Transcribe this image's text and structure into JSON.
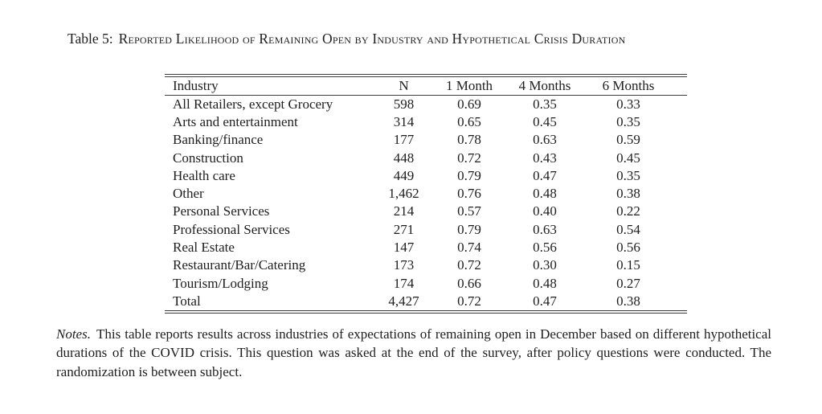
{
  "title": {
    "prefix": "Table 5:",
    "smallcaps": "Reported Likelihood of Remaining Open by Industry and Hypothetical Crisis Duration"
  },
  "table": {
    "columns": [
      "Industry",
      "N",
      "1 Month",
      "4 Months",
      "6 Months"
    ],
    "rows": [
      {
        "industry": "All Retailers, except Grocery",
        "n": "598",
        "m1": "0.69",
        "m4": "0.35",
        "m6": "0.33"
      },
      {
        "industry": "Arts and entertainment",
        "n": "314",
        "m1": "0.65",
        "m4": "0.45",
        "m6": "0.35"
      },
      {
        "industry": "Banking/finance",
        "n": "177",
        "m1": "0.78",
        "m4": "0.63",
        "m6": "0.59"
      },
      {
        "industry": "Construction",
        "n": "448",
        "m1": "0.72",
        "m4": "0.43",
        "m6": "0.45"
      },
      {
        "industry": "Health care",
        "n": "449",
        "m1": "0.79",
        "m4": "0.47",
        "m6": "0.35"
      },
      {
        "industry": "Other",
        "n": "1,462",
        "m1": "0.76",
        "m4": "0.48",
        "m6": "0.38"
      },
      {
        "industry": "Personal Services",
        "n": "214",
        "m1": "0.57",
        "m4": "0.40",
        "m6": "0.22"
      },
      {
        "industry": "Professional Services",
        "n": "271",
        "m1": "0.79",
        "m4": "0.63",
        "m6": "0.54"
      },
      {
        "industry": "Real Estate",
        "n": "147",
        "m1": "0.74",
        "m4": "0.56",
        "m6": "0.56"
      },
      {
        "industry": "Restaurant/Bar/Catering",
        "n": "173",
        "m1": "0.72",
        "m4": "0.30",
        "m6": "0.15"
      },
      {
        "industry": "Tourism/Lodging",
        "n": "174",
        "m1": "0.66",
        "m4": "0.48",
        "m6": "0.27"
      },
      {
        "industry": "Total",
        "n": "4,427",
        "m1": "0.72",
        "m4": "0.47",
        "m6": "0.38"
      }
    ]
  },
  "notes": {
    "label": "Notes.",
    "text": "This table reports results across industries of expectations of remaining open in December based on different hypothetical durations of the COVID crisis. This question was asked at the end of the survey, after policy questions were conducted. The randomization is between subject."
  }
}
